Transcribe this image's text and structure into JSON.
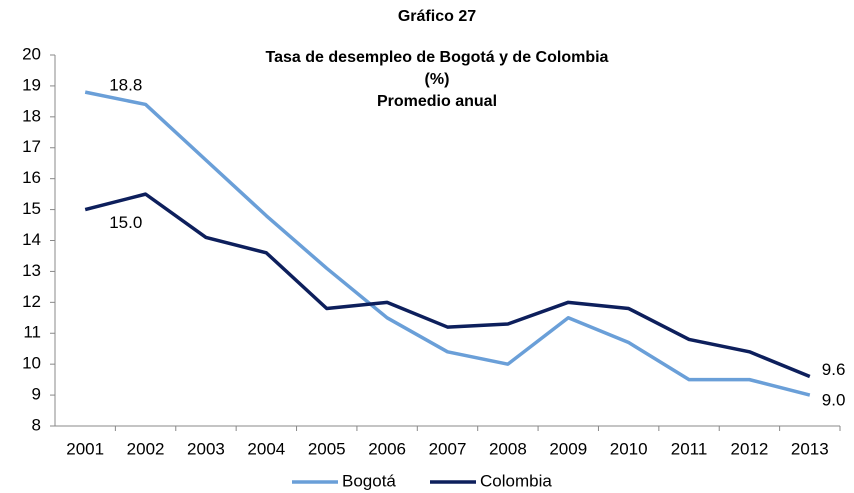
{
  "chart_data": {
    "type": "line",
    "title": "Gráfico 27",
    "subtitle": [
      "Tasa de desempleo de Bogotá y de Colombia",
      "(%)",
      "Promedio anual"
    ],
    "categories": [
      "2001",
      "2002",
      "2003",
      "2004",
      "2005",
      "2006",
      "2007",
      "2008",
      "2009",
      "2010",
      "2011",
      "2012",
      "2013"
    ],
    "series": [
      {
        "name": "Bogotá",
        "color": "#6a9fd8",
        "values": [
          18.8,
          18.4,
          16.6,
          14.8,
          13.1,
          11.5,
          10.4,
          10.0,
          11.5,
          10.7,
          9.5,
          9.5,
          9.0
        ],
        "value_labels": [
          "18.8",
          null,
          null,
          null,
          null,
          null,
          null,
          null,
          null,
          null,
          null,
          null,
          "9.0"
        ]
      },
      {
        "name": "Colombia",
        "color": "#0d1f5c",
        "values": [
          15.0,
          15.5,
          14.1,
          13.6,
          11.8,
          12.0,
          11.2,
          11.3,
          12.0,
          11.8,
          10.8,
          10.4,
          9.6
        ],
        "value_labels": [
          "15.0",
          null,
          null,
          null,
          null,
          null,
          null,
          null,
          null,
          null,
          null,
          null,
          "9.6"
        ]
      }
    ],
    "ylim": [
      8,
      20
    ],
    "yticks": [
      8,
      9,
      10,
      11,
      12,
      13,
      14,
      15,
      16,
      17,
      18,
      19,
      20
    ],
    "grid": false,
    "legend": "bottom"
  }
}
